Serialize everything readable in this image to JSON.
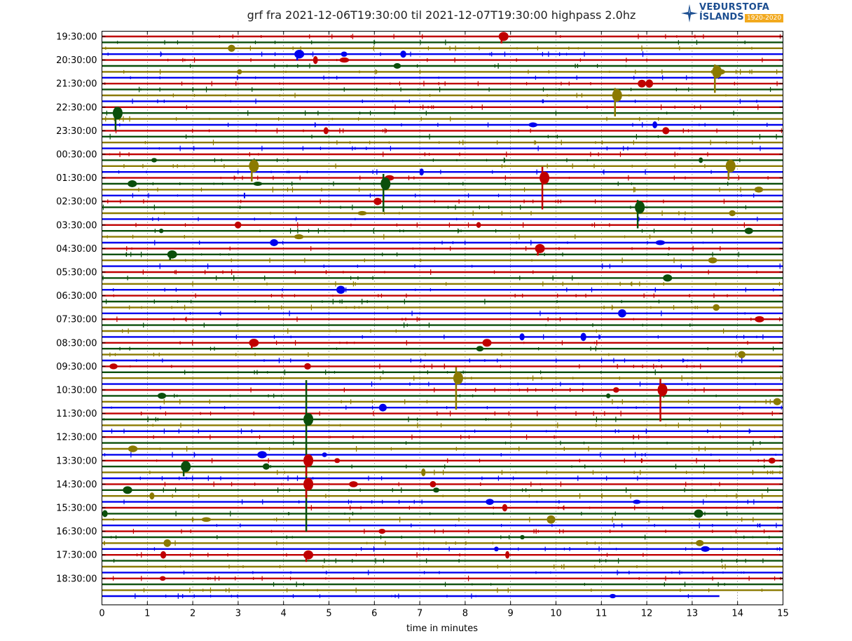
{
  "logo": {
    "name_line1": "VEÐURSTOFA",
    "name_line2": "ÍSLANDS",
    "years": "1920-2020",
    "icon": "star-compass-icon"
  },
  "chart_data": {
    "type": "line",
    "title": "grf fra 2021-12-06T19:30:00 til 2021-12-07T19:30:00 highpass 2.0hz",
    "xlabel": "time in minutes",
    "ylabel": "",
    "xlim": [
      0,
      15
    ],
    "x_ticks": [
      "0",
      "1",
      "2",
      "3",
      "4",
      "5",
      "6",
      "7",
      "8",
      "9",
      "10",
      "11",
      "12",
      "13",
      "14",
      "15"
    ],
    "y_tick_labels": [
      "19:30:00",
      "20:30:00",
      "21:30:00",
      "22:30:00",
      "23:30:00",
      "00:30:00",
      "01:30:00",
      "02:30:00",
      "03:30:00",
      "04:30:00",
      "05:30:00",
      "06:30:00",
      "07:30:00",
      "08:30:00",
      "09:30:00",
      "10:30:00",
      "11:30:00",
      "12:30:00",
      "13:30:00",
      "14:30:00",
      "15:30:00",
      "16:30:00",
      "17:30:00",
      "18:30:00"
    ],
    "traces_per_hour": 4,
    "trace_minutes": 15,
    "last_trace_end_minute": 13.6,
    "grid": "vertical dotted",
    "colors": [
      "#c00000",
      "#0b4f0b",
      "#8b7a00",
      "#0000ee"
    ],
    "events": [
      {
        "trace": 0,
        "minute": 8.8,
        "amp": 10
      },
      {
        "trace": 3,
        "minute": 4.3,
        "amp": 9
      },
      {
        "trace": 6,
        "minute": 13.5,
        "amp": 30
      },
      {
        "trace": 10,
        "minute": 11.3,
        "amp": 30
      },
      {
        "trace": 13,
        "minute": 0.3,
        "amp": 25
      },
      {
        "trace": 22,
        "minute": 3.3,
        "amp": 22
      },
      {
        "trace": 22,
        "minute": 13.8,
        "amp": 20
      },
      {
        "trace": 24,
        "minute": 9.7,
        "amp": 45
      },
      {
        "trace": 25,
        "minute": 6.2,
        "amp": 40
      },
      {
        "trace": 29,
        "minute": 11.8,
        "amp": 30
      },
      {
        "trace": 36,
        "minute": 9.6,
        "amp": 10
      },
      {
        "trace": 37,
        "minute": 1.5,
        "amp": 8
      },
      {
        "trace": 52,
        "minute": 3.3,
        "amp": 8
      },
      {
        "trace": 58,
        "minute": 7.8,
        "amp": 45
      },
      {
        "trace": 60,
        "minute": 12.3,
        "amp": 45
      },
      {
        "trace": 65,
        "minute": 4.5,
        "amp": 160
      },
      {
        "trace": 72,
        "minute": 4.5,
        "amp": 22
      },
      {
        "trace": 73,
        "minute": 1.8,
        "amp": 14
      },
      {
        "trace": 76,
        "minute": 4.5,
        "amp": 20
      },
      {
        "trace": 88,
        "minute": 4.5,
        "amp": 10
      }
    ]
  }
}
